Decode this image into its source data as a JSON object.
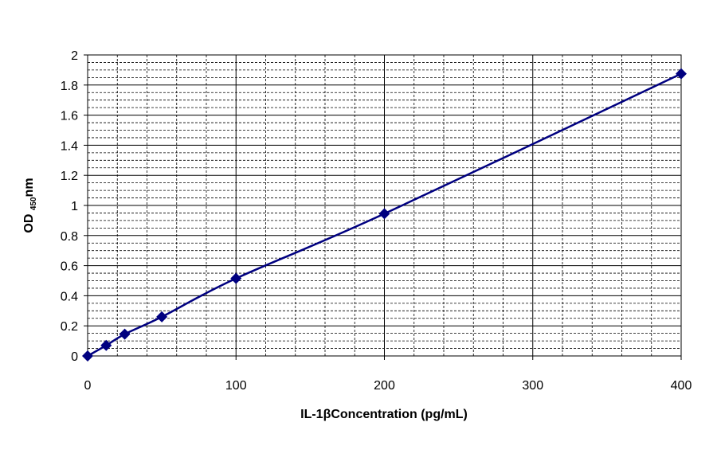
{
  "chart_data": {
    "type": "line",
    "title": "",
    "xlabel": "IL-1βConcentration (pg/mL)",
    "ylabel": {
      "prefix": "OD ",
      "subscript": "450",
      "suffix": "nm"
    },
    "xlim": [
      0,
      400
    ],
    "ylim": [
      0,
      2
    ],
    "xticks": [
      0,
      100,
      200,
      300,
      400
    ],
    "yticks": [
      0,
      0.2,
      0.4,
      0.6,
      0.8,
      1,
      1.2,
      1.4,
      1.6,
      1.8,
      2
    ],
    "grid": {
      "major": true,
      "minor": true
    },
    "legend": "none",
    "series": [
      {
        "color": "#000080",
        "marker": "diamond",
        "x": [
          0,
          12.5,
          25,
          50,
          100,
          200,
          400
        ],
        "y": [
          0,
          0.07,
          0.145,
          0.26,
          0.515,
          0.945,
          1.875
        ]
      }
    ]
  }
}
